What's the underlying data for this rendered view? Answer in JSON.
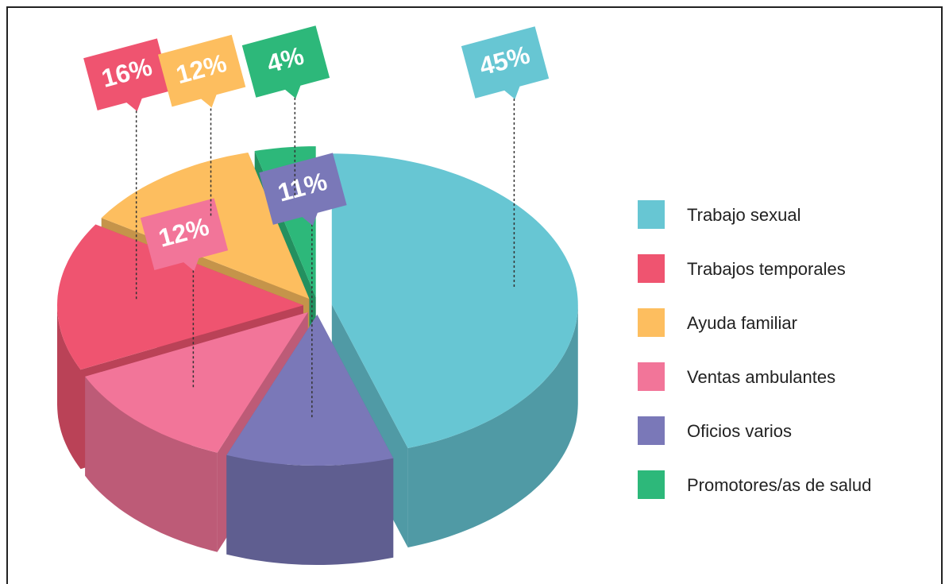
{
  "chart_data": {
    "type": "pie",
    "categories": [
      "Trabajo sexual",
      "Trabajos temporales",
      "Ayuda familiar",
      "Ventas ambulantes",
      "Oficios varios",
      "Promotores/as de salud"
    ],
    "values": [
      45,
      16,
      12,
      12,
      11,
      4
    ],
    "value_labels": [
      "45%",
      "16%",
      "12%",
      "12%",
      "11%",
      "4%"
    ],
    "colors": [
      "#67c6d3",
      "#ef5470",
      "#fdbe5f",
      "#f27599",
      "#7a78b8",
      "#2db87a"
    ],
    "legend": "right"
  }
}
